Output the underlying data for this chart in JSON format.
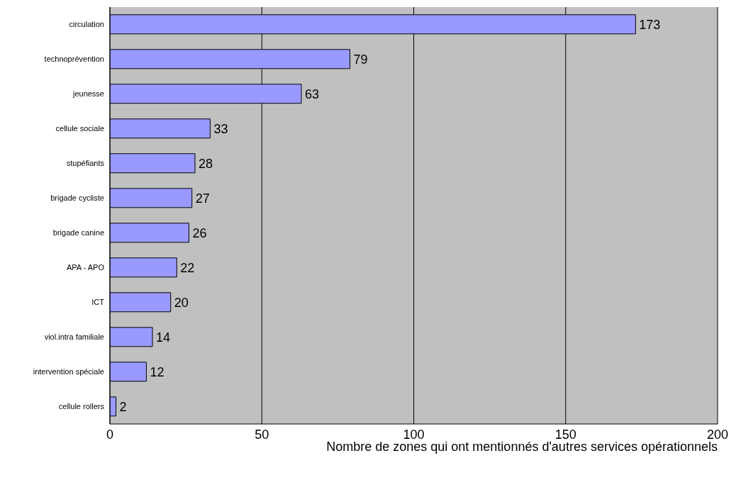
{
  "chart_data": {
    "type": "bar",
    "orientation": "horizontal",
    "xlabel": "Nombre de zones qui ont mentionnés d'autres services opérationnels",
    "categories": [
      "circulation",
      "technoprévention",
      "jeunesse",
      "cellule sociale",
      "stupéfiants",
      "brigade cycliste",
      "brigade canine",
      "APA - APO",
      "ICT",
      "viol.intra familiale",
      "intervention spéciale",
      "cellule rollers"
    ],
    "values": [
      173,
      79,
      63,
      33,
      28,
      27,
      26,
      22,
      20,
      14,
      12,
      2
    ],
    "color": "#9999ff",
    "xlim": [
      0,
      200
    ],
    "xticks": [
      0,
      50,
      100,
      150,
      200
    ],
    "grid": "x",
    "data_labels": true
  }
}
